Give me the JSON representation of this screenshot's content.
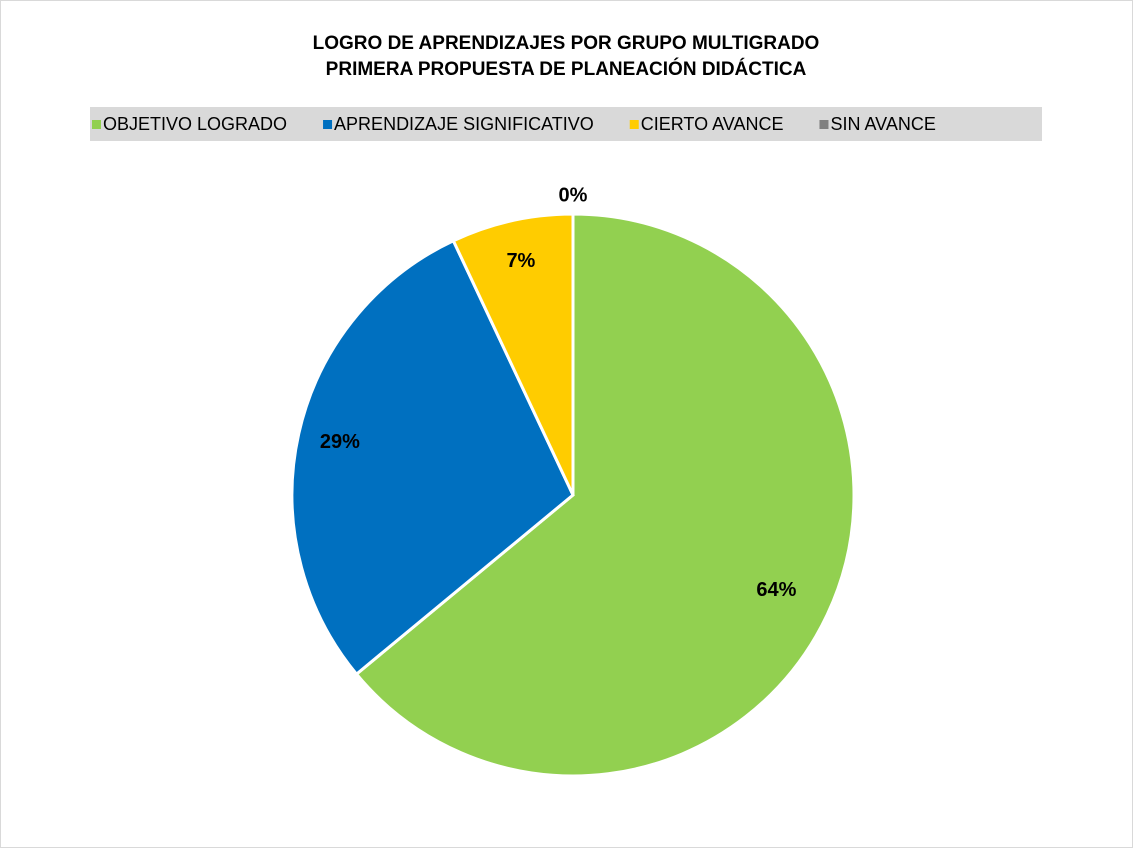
{
  "chart_data": {
    "type": "pie",
    "title": "LOGRO DE APRENDIZAJES POR GRUPO MULTIGRADO",
    "subtitle": "PRIMERA PROPUESTA DE PLANEACIÓN DIDÁCTICA",
    "categories": [
      "OBJETIVO LOGRADO",
      "APRENDIZAJE SIGNIFICATIVO",
      "CIERTO AVANCE",
      "SIN AVANCE"
    ],
    "values": [
      64,
      29,
      7,
      0
    ],
    "value_labels": [
      "64%",
      "29%",
      "7%",
      "0%"
    ],
    "colors": [
      "#92d050",
      "#0070c0",
      "#ffcc00",
      "#808080"
    ],
    "legend": "top"
  }
}
